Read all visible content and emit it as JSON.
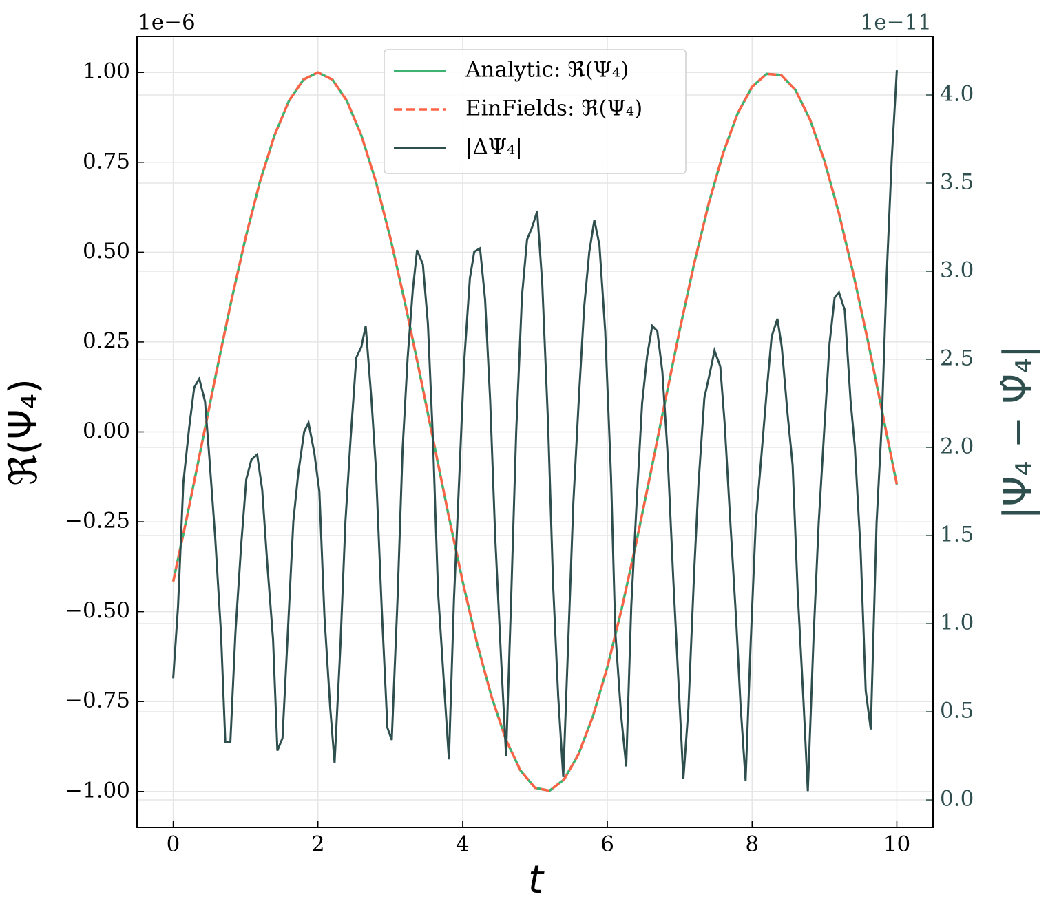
{
  "chart_data": {
    "type": "line",
    "xlabel": "t",
    "ylabel": "ℜ(Ψ₄)",
    "y2label": "|Ψ₄ − Ψ̂₄|",
    "y_offset_text": "1e−6",
    "y2_offset_text": "1e−11",
    "xlim": [
      -0.5,
      10.5
    ],
    "ylim": [
      -1.1,
      1.1
    ],
    "y2lim": [
      -0.156,
      4.332
    ],
    "xticks": [
      0,
      2,
      4,
      6,
      8,
      10
    ],
    "yticks": [
      {
        "value": -1,
        "label": "−1.00"
      },
      {
        "value": -0.75,
        "label": "−0.75"
      },
      {
        "value": -0.5,
        "label": "−0.50"
      },
      {
        "value": -0.25,
        "label": "−0.25"
      },
      {
        "value": 0,
        "label": "0.00"
      },
      {
        "value": 0.25,
        "label": "0.25"
      },
      {
        "value": 0.5,
        "label": "0.50"
      },
      {
        "value": 0.75,
        "label": "0.75"
      },
      {
        "value": 1,
        "label": "1.00"
      }
    ],
    "y2ticks": [
      {
        "value": 0,
        "label": "0.0"
      },
      {
        "value": 0.5,
        "label": "0.5"
      },
      {
        "value": 1,
        "label": "1.0"
      },
      {
        "value": 1.5,
        "label": "1.5"
      },
      {
        "value": 2,
        "label": "2.0"
      },
      {
        "value": 2.5,
        "label": "2.5"
      },
      {
        "value": 3,
        "label": "3.0"
      },
      {
        "value": 3.5,
        "label": "3.5"
      },
      {
        "value": 4,
        "label": "4.0"
      }
    ],
    "grid": true,
    "legend": "upper center",
    "y2_color": "#2f4f4f",
    "series": [
      {
        "name": "Analytic: ℜ(Ψ₄)",
        "color": "#3cb371",
        "linestyle": "solid",
        "x": [
          0,
          0.2,
          0.4,
          0.6,
          0.8,
          1,
          1.2,
          1.4,
          1.6,
          1.8,
          2,
          2.2,
          2.4,
          2.6,
          2.8,
          3,
          3.2,
          3.4,
          3.6,
          3.8,
          4,
          4.2,
          4.4,
          4.6,
          4.8,
          5,
          5.2,
          5.4,
          5.6,
          5.8,
          6,
          6.2,
          6.4,
          6.6,
          6.8,
          7,
          7.2,
          7.4,
          7.6,
          7.8,
          8,
          8.2,
          8.4,
          8.6,
          8.8,
          9,
          9.2,
          9.4,
          9.6,
          9.8,
          10
        ],
        "values": [
          -0.416,
          -0.227,
          -0.029,
          0.17,
          0.362,
          0.54,
          0.697,
          0.825,
          0.921,
          0.98,
          1,
          0.98,
          0.921,
          0.825,
          0.697,
          0.54,
          0.362,
          0.17,
          -0.029,
          -0.227,
          -0.416,
          -0.589,
          -0.737,
          -0.857,
          -0.942,
          -0.99,
          -0.998,
          -0.967,
          -0.897,
          -0.791,
          -0.654,
          -0.49,
          -0.307,
          -0.112,
          0.087,
          0.284,
          0.469,
          0.635,
          0.776,
          0.886,
          0.96,
          0.996,
          0.993,
          0.951,
          0.869,
          0.754,
          0.608,
          0.439,
          0.253,
          0.054,
          -0.146
        ]
      },
      {
        "name": "EinFields: ℜ(Ψ₄)",
        "color": "#ff6347",
        "linestyle": "dashed",
        "x": [
          0,
          0.2,
          0.4,
          0.6,
          0.8,
          1,
          1.2,
          1.4,
          1.6,
          1.8,
          2,
          2.2,
          2.4,
          2.6,
          2.8,
          3,
          3.2,
          3.4,
          3.6,
          3.8,
          4,
          4.2,
          4.4,
          4.6,
          4.8,
          5,
          5.2,
          5.4,
          5.6,
          5.8,
          6,
          6.2,
          6.4,
          6.6,
          6.8,
          7,
          7.2,
          7.4,
          7.6,
          7.8,
          8,
          8.2,
          8.4,
          8.6,
          8.8,
          9,
          9.2,
          9.4,
          9.6,
          9.8,
          10
        ],
        "values": [
          -0.416,
          -0.227,
          -0.029,
          0.17,
          0.362,
          0.54,
          0.697,
          0.825,
          0.921,
          0.98,
          1,
          0.98,
          0.921,
          0.825,
          0.697,
          0.54,
          0.362,
          0.17,
          -0.029,
          -0.227,
          -0.416,
          -0.589,
          -0.737,
          -0.857,
          -0.942,
          -0.99,
          -0.998,
          -0.967,
          -0.897,
          -0.791,
          -0.654,
          -0.49,
          -0.307,
          -0.112,
          0.087,
          0.284,
          0.469,
          0.635,
          0.776,
          0.886,
          0.96,
          0.996,
          0.993,
          0.951,
          0.869,
          0.754,
          0.608,
          0.439,
          0.253,
          0.054,
          -0.146
        ]
      },
      {
        "name": "|ΔΨ₄|",
        "color": "#2f4f4f",
        "linestyle": "solid",
        "axis": "y2",
        "x": [
          0,
          0.067,
          0.14,
          0.22,
          0.29,
          0.36,
          0.44,
          0.5,
          0.58,
          0.66,
          0.72,
          0.79,
          0.86,
          0.94,
          1.01,
          1.08,
          1.16,
          1.23,
          1.3,
          1.38,
          1.44,
          1.51,
          1.59,
          1.66,
          1.73,
          1.81,
          1.87,
          1.95,
          2.02,
          2.09,
          2.17,
          2.23,
          2.31,
          2.38,
          2.45,
          2.53,
          2.6,
          2.66,
          2.74,
          2.8,
          2.88,
          2.96,
          3.02,
          3.1,
          3.17,
          3.24,
          3.31,
          3.37,
          3.45,
          3.52,
          3.59,
          3.66,
          3.74,
          3.81,
          3.88,
          3.95,
          4.02,
          4.1,
          4.16,
          4.24,
          4.31,
          4.38,
          4.45,
          4.53,
          4.6,
          4.67,
          4.74,
          4.82,
          4.89,
          4.96,
          5.03,
          5.1,
          5.18,
          5.25,
          5.32,
          5.39,
          5.47,
          5.53,
          5.61,
          5.68,
          5.75,
          5.82,
          5.89,
          5.97,
          6.05,
          6.11,
          6.19,
          6.26,
          6.33,
          6.41,
          6.48,
          6.55,
          6.62,
          6.69,
          6.76,
          6.83,
          6.91,
          6.98,
          7.05,
          7.12,
          7.2,
          7.26,
          7.34,
          7.42,
          7.48,
          7.56,
          7.62,
          7.7,
          7.78,
          7.84,
          7.91,
          7.98,
          8.05,
          8.13,
          8.2,
          8.27,
          8.35,
          8.41,
          8.49,
          8.56,
          8.63,
          8.71,
          8.77,
          8.85,
          8.92,
          9,
          9.07,
          9.14,
          9.2,
          9.28,
          9.36,
          9.42,
          9.5,
          9.57,
          9.64,
          9.72,
          9.79,
          9.86,
          9.93,
          10
        ],
        "values": [
          0.69,
          1.1,
          1.8,
          2.11,
          2.34,
          2.39,
          2.26,
          1.94,
          1.49,
          0.95,
          0.33,
          0.33,
          0.95,
          1.45,
          1.82,
          1.93,
          1.96,
          1.76,
          1.34,
          0.91,
          0.28,
          0.35,
          1.0,
          1.58,
          1.86,
          2.09,
          2.14,
          1.97,
          1.75,
          1.04,
          0.52,
          0.21,
          0.87,
          1.58,
          2.04,
          2.51,
          2.57,
          2.69,
          2.27,
          1.89,
          1.1,
          0.41,
          0.34,
          1.14,
          1.99,
          2.51,
          2.89,
          3.12,
          3.04,
          2.7,
          2.04,
          1.18,
          0.67,
          0.23,
          1.14,
          1.8,
          2.48,
          2.96,
          3.11,
          3.13,
          2.84,
          2.27,
          1.49,
          0.81,
          0.25,
          1.14,
          2.09,
          2.86,
          3.18,
          3.25,
          3.34,
          2.93,
          2.14,
          1.22,
          0.59,
          0.13,
          1.02,
          1.69,
          2.31,
          2.8,
          3.11,
          3.29,
          3.15,
          2.66,
          1.84,
          0.95,
          0.48,
          0.19,
          1.1,
          1.73,
          2.25,
          2.52,
          2.69,
          2.66,
          2.43,
          1.98,
          1.26,
          0.69,
          0.12,
          0.52,
          1.3,
          1.8,
          2.28,
          2.43,
          2.55,
          2.46,
          2.14,
          1.57,
          1.02,
          0.54,
          0.11,
          0.89,
          1.57,
          1.96,
          2.31,
          2.63,
          2.73,
          2.57,
          2.19,
          1.9,
          1.18,
          0.56,
          0.05,
          0.93,
          1.57,
          2.12,
          2.59,
          2.85,
          2.88,
          2.78,
          2.27,
          2.0,
          1.41,
          0.62,
          0.4,
          1.57,
          2.12,
          2.98,
          3.64,
          4.14
        ]
      }
    ]
  }
}
